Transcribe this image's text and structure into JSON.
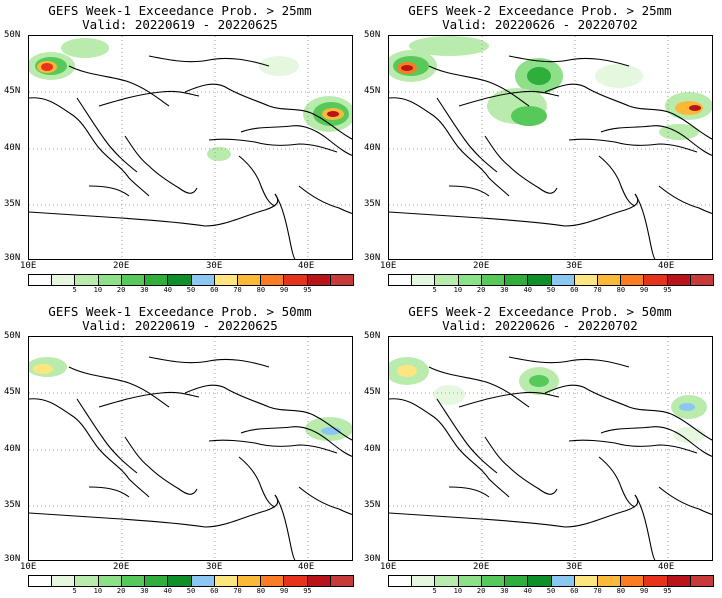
{
  "panels": [
    {
      "title": "GEFS Week-1 Exceedance Prob. > 25mm",
      "valid": "Valid: 20220619 - 20220625"
    },
    {
      "title": "GEFS Week-2 Exceedance Prob. > 25mm",
      "valid": "Valid: 20220626 - 20220702"
    },
    {
      "title": "GEFS Week-1 Exceedance Prob. > 50mm",
      "valid": "Valid: 20220619 - 20220625"
    },
    {
      "title": "GEFS Week-2 Exceedance Prob. > 50mm",
      "valid": "Valid: 20220626 - 20220702"
    }
  ],
  "lat_labels": [
    "50N",
    "45N",
    "40N",
    "35N",
    "30N"
  ],
  "lon_labels": [
    "10E",
    "20E",
    "30E",
    "40E"
  ],
  "colorbar": {
    "labels": [
      "5",
      "10",
      "20",
      "30",
      "40",
      "50",
      "60",
      "70",
      "80",
      "90",
      "95"
    ],
    "colors": [
      "#ffffff",
      "#e6f7e0",
      "#b9ecac",
      "#8de087",
      "#57c85a",
      "#2fae3c",
      "#0f8f2a",
      "#8cc7f2",
      "#fde680",
      "#fcb838",
      "#fa7d24",
      "#e8331c",
      "#b8141a",
      "#c83a3a"
    ]
  }
}
